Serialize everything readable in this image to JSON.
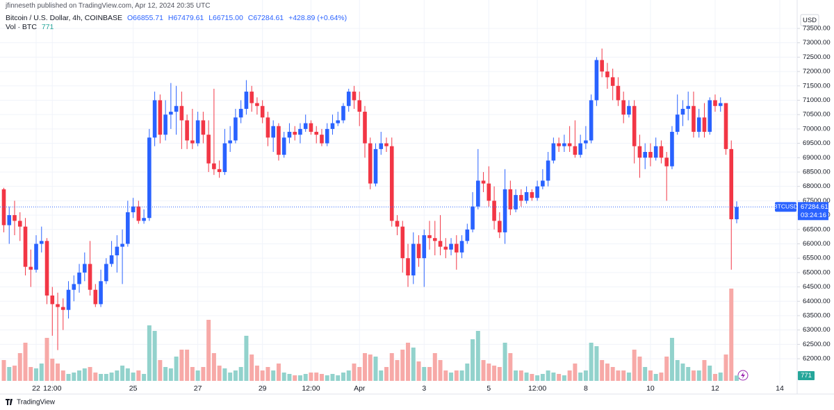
{
  "header": {
    "publisher": "jfinneseth published on TradingView.com, Apr 12, 2024 20:35 UTC",
    "symbol": "Bitcoin / U.S. Dollar, 4h, COINBASE",
    "open": "O66855.71",
    "high": "H67479.61",
    "low": "L66715.00",
    "close": "C67284.61",
    "change": "+428.89 (+0.64%)",
    "currency": "USD",
    "symbol_tag": "BTCUSD",
    "countdown": "03:24:16"
  },
  "footer": {
    "brand": "TradingView"
  },
  "chart_data": {
    "type": "candlestick",
    "grid": true,
    "up_color": "#2962ff",
    "down_color": "#f23645",
    "up_volume_color": "#92d2cc",
    "down_volume_color": "#f7a9a7",
    "ylim": [
      60770,
      74490
    ],
    "yticks": [
      {
        "value": 62000,
        "label": "62000.00"
      },
      {
        "value": 62500,
        "label": "62500.00"
      },
      {
        "value": 63000,
        "label": "63000.00"
      },
      {
        "value": 63500,
        "label": "63500.00"
      },
      {
        "value": 64000,
        "label": "64000.00"
      },
      {
        "value": 64500,
        "label": "64500.00"
      },
      {
        "value": 65000,
        "label": "65000.00"
      },
      {
        "value": 65500,
        "label": "65500.00"
      },
      {
        "value": 66000,
        "label": "66000.00"
      },
      {
        "value": 66500,
        "label": "66500.00"
      },
      {
        "value": 67000,
        "label": "67000.00"
      },
      {
        "value": 67500,
        "label": "67500.00"
      },
      {
        "value": 68000,
        "label": "68000.00"
      },
      {
        "value": 68500,
        "label": "68500.00"
      },
      {
        "value": 69000,
        "label": "69000.00"
      },
      {
        "value": 69500,
        "label": "69500.00"
      },
      {
        "value": 70000,
        "label": "70000.00"
      },
      {
        "value": 70500,
        "label": "70500.00"
      },
      {
        "value": 71000,
        "label": "71000.00"
      },
      {
        "value": 71500,
        "label": "71500.00"
      },
      {
        "value": 72000,
        "label": "72000.00"
      },
      {
        "value": 72500,
        "label": "72500.00"
      },
      {
        "value": 73000,
        "label": "73000.00"
      },
      {
        "value": 73500,
        "label": "73500.00"
      }
    ],
    "categories": [
      null,
      null,
      null,
      null,
      null,
      null,
      "22",
      null,
      null,
      "12:00",
      null,
      null,
      null,
      null,
      null,
      null,
      null,
      null,
      null,
      null,
      null,
      null,
      null,
      null,
      "25",
      null,
      null,
      null,
      null,
      null,
      null,
      null,
      null,
      null,
      null,
      null,
      "27",
      null,
      null,
      null,
      null,
      null,
      null,
      null,
      null,
      null,
      null,
      null,
      "29",
      null,
      null,
      null,
      null,
      null,
      null,
      null,
      null,
      "12:00",
      null,
      null,
      null,
      null,
      null,
      null,
      null,
      null,
      "Apr",
      null,
      null,
      null,
      null,
      null,
      null,
      null,
      null,
      null,
      null,
      null,
      "3",
      null,
      null,
      null,
      null,
      null,
      null,
      null,
      null,
      null,
      null,
      null,
      "5",
      null,
      null,
      null,
      null,
      null,
      null,
      null,
      null,
      "12:00",
      null,
      null,
      null,
      null,
      null,
      null,
      null,
      null,
      "8",
      null,
      null,
      null,
      null,
      null,
      null,
      null,
      null,
      null,
      null,
      null,
      "10",
      null,
      null,
      null,
      null,
      null,
      null,
      null,
      null,
      null,
      null,
      null,
      "12",
      null,
      null,
      null,
      null,
      null,
      null,
      null,
      null,
      null,
      null,
      null,
      "14"
    ],
    "open": [
      67900,
      66650,
      67000,
      66800,
      66600,
      65200,
      65100,
      66000,
      66100,
      64200,
      63900,
      63800,
      63700,
      64400,
      64600,
      65000,
      65300,
      64400,
      63900,
      64700,
      65300,
      65600,
      65900,
      66000,
      67100,
      67300,
      66800,
      66900,
      69700,
      71000,
      69800,
      70500,
      70600,
      70800,
      70300,
      69600,
      69500,
      70300,
      69800,
      68800,
      68600,
      68500,
      69500,
      69600,
      70400,
      70700,
      71300,
      70900,
      70800,
      70400,
      69700,
      70100,
      69100,
      69700,
      69900,
      69800,
      70000,
      70200,
      69900,
      69800,
      69500,
      70000,
      70200,
      70300,
      70800,
      71300,
      71000,
      70600,
      69500,
      68100,
      69300,
      69500,
      69400,
      66800,
      66600,
      65500,
      64900,
      66000,
      65500,
      66300,
      66200,
      66100,
      65900,
      65800,
      66000,
      65700,
      66100,
      66500,
      67300,
      68200,
      68100,
      67500,
      66800,
      66400,
      67900,
      67200,
      67700,
      67500,
      67800,
      67600,
      68000,
      68200,
      68900,
      69500,
      69400,
      69500,
      69400,
      69100,
      69500,
      69600,
      71000,
      72400,
      72000,
      71800,
      71500,
      71000,
      70500,
      70800,
      69400,
      69000,
      69200,
      69000,
      69400,
      69000,
      68700,
      69900,
      70500,
      70700,
      70800,
      69900,
      70400,
      69900,
      71000,
      70800,
      70900,
      69300,
      66855.71,
      null,
      null,
      null,
      null,
      null,
      null,
      null,
      null
    ],
    "high": [
      67950,
      67300,
      67500,
      67100,
      66900,
      65800,
      66300,
      66600,
      66200,
      64500,
      64300,
      64100,
      64700,
      64900,
      65300,
      65700,
      66100,
      64600,
      65100,
      65500,
      66100,
      66300,
      66500,
      67500,
      67600,
      67500,
      67200,
      70000,
      71300,
      71200,
      71000,
      71600,
      71500,
      71300,
      70500,
      70700,
      70600,
      70600,
      70300,
      71400,
      68900,
      70000,
      70100,
      70700,
      71000,
      71700,
      71500,
      71100,
      71000,
      70600,
      70300,
      70200,
      69900,
      70200,
      70100,
      70200,
      70500,
      70300,
      70100,
      70000,
      70200,
      70500,
      70600,
      70900,
      71400,
      71500,
      71300,
      70800,
      69700,
      69500,
      69900,
      69700,
      69700,
      67000,
      66800,
      66000,
      66400,
      66300,
      66500,
      66800,
      66800,
      67000,
      66200,
      66200,
      66300,
      66300,
      66700,
      67800,
      69300,
      68500,
      68700,
      68000,
      67100,
      68600,
      68200,
      67900,
      67900,
      68000,
      67900,
      68200,
      68600,
      69200,
      69700,
      69700,
      69800,
      70100,
      70300,
      69800,
      70100,
      71200,
      72500,
      72800,
      72300,
      72100,
      71800,
      71300,
      71000,
      71000,
      69800,
      69500,
      69500,
      69700,
      69600,
      69200,
      70100,
      71200,
      71000,
      71300,
      71300,
      70700,
      70900,
      71100,
      71200,
      71100,
      70900,
      69600,
      67479.61,
      null,
      null,
      null,
      null,
      null,
      null,
      null,
      null
    ],
    "low": [
      66400,
      66000,
      66300,
      66100,
      64900,
      64500,
      65000,
      65700,
      63900,
      62800,
      62300,
      63000,
      63400,
      64000,
      64300,
      64700,
      64200,
      63800,
      63800,
      64600,
      65200,
      65000,
      64600,
      65900,
      66900,
      66700,
      66700,
      66800,
      69400,
      69500,
      69600,
      70000,
      69800,
      69300,
      69300,
      69300,
      69400,
      69500,
      68500,
      68400,
      68300,
      68400,
      69200,
      69500,
      70200,
      70500,
      70600,
      70500,
      70200,
      69400,
      69200,
      68900,
      69000,
      69500,
      69600,
      69500,
      69900,
      69800,
      69500,
      69400,
      69400,
      69800,
      70100,
      70200,
      70600,
      70700,
      70100,
      69000,
      67900,
      68000,
      69100,
      69200,
      66600,
      66300,
      65000,
      64500,
      64600,
      65200,
      64500,
      65800,
      65600,
      65600,
      65500,
      65600,
      65100,
      65500,
      66000,
      66400,
      67200,
      67800,
      67300,
      66500,
      66200,
      66000,
      67000,
      67100,
      67300,
      67400,
      67500,
      67500,
      67900,
      68000,
      68800,
      69200,
      69200,
      69200,
      69000,
      69000,
      69300,
      69500,
      70800,
      71800,
      71400,
      71000,
      70800,
      70200,
      70400,
      68800,
      68300,
      68600,
      68700,
      68900,
      68800,
      67500,
      68600,
      69800,
      70100,
      70300,
      69700,
      69700,
      69700,
      69800,
      70600,
      70600,
      69100,
      65100,
      66715,
      null,
      null,
      null,
      null,
      null,
      null,
      null,
      null
    ],
    "close": [
      66650,
      67000,
      66800,
      66600,
      65200,
      65100,
      66000,
      66100,
      64200,
      63900,
      63800,
      63700,
      64400,
      64600,
      65000,
      65300,
      64400,
      63900,
      64700,
      65300,
      65600,
      65900,
      66000,
      67100,
      67300,
      66800,
      66900,
      69700,
      71000,
      69800,
      70500,
      70600,
      70800,
      70300,
      69600,
      69500,
      70300,
      69800,
      68800,
      68600,
      68500,
      69500,
      69600,
      70400,
      70700,
      71300,
      70900,
      70800,
      70400,
      69700,
      70100,
      69100,
      69700,
      69900,
      69800,
      70000,
      70200,
      69900,
      69800,
      69500,
      70000,
      70200,
      70300,
      70800,
      71300,
      71000,
      70600,
      69500,
      68100,
      69300,
      69500,
      69400,
      66800,
      66600,
      65500,
      64900,
      66000,
      65500,
      66300,
      66200,
      66100,
      65900,
      65800,
      66000,
      65700,
      66100,
      66500,
      67300,
      68200,
      68100,
      67500,
      66800,
      66400,
      67900,
      67200,
      67700,
      67500,
      67800,
      67600,
      68000,
      68200,
      68900,
      69500,
      69400,
      69500,
      69400,
      69100,
      69500,
      69600,
      71000,
      72400,
      72000,
      71800,
      71500,
      71000,
      70500,
      70800,
      69400,
      69000,
      69200,
      69000,
      69400,
      69000,
      68700,
      69900,
      70500,
      70700,
      70800,
      69900,
      70400,
      69900,
      71000,
      70800,
      70900,
      69300,
      66855.72,
      67284.61,
      null,
      null,
      null,
      null,
      null,
      null,
      null,
      null
    ],
    "volume": {
      "name": "Vol · BTC",
      "values": [
        3000,
        2000,
        2200,
        4000,
        5500,
        2000,
        1800,
        2500,
        6200,
        3200,
        2500,
        1500,
        1000,
        1200,
        1500,
        1800,
        2000,
        1200,
        1000,
        1000,
        1200,
        1500,
        2200,
        1800,
        1200,
        1500,
        1000,
        8000,
        7200,
        3000,
        2000,
        1800,
        3500,
        4500,
        4500,
        2000,
        1500,
        2000,
        8800,
        4000,
        2200,
        1800,
        1200,
        1500,
        2000,
        6500,
        3800,
        2200,
        1500,
        2000,
        1500,
        2500,
        1200,
        1000,
        800,
        800,
        1000,
        1200,
        1200,
        1000,
        800,
        1000,
        800,
        1200,
        1500,
        2500,
        2000,
        4000,
        3800,
        3500,
        1500,
        2000,
        4000,
        3000,
        4500,
        5500,
        4800,
        2800,
        2000,
        2000,
        4000,
        3000,
        1500,
        1200,
        1500,
        1500,
        2500,
        6000,
        7200,
        3000,
        2500,
        2200,
        2000,
        5500,
        4000,
        1500,
        1500,
        1200,
        1000,
        800,
        1000,
        1500,
        1200,
        1000,
        800,
        1500,
        2500,
        1200,
        1500,
        5500,
        5000,
        3000,
        2500,
        2000,
        1500,
        1500,
        1200,
        4500,
        3500,
        2000,
        1500,
        1000,
        1200,
        3500,
        6200,
        3000,
        2500,
        2000,
        1500,
        1500,
        3000,
        2200,
        1000,
        1200,
        3800,
        13300,
        771,
        null,
        null,
        null,
        null,
        null,
        null,
        null,
        null
      ]
    }
  }
}
